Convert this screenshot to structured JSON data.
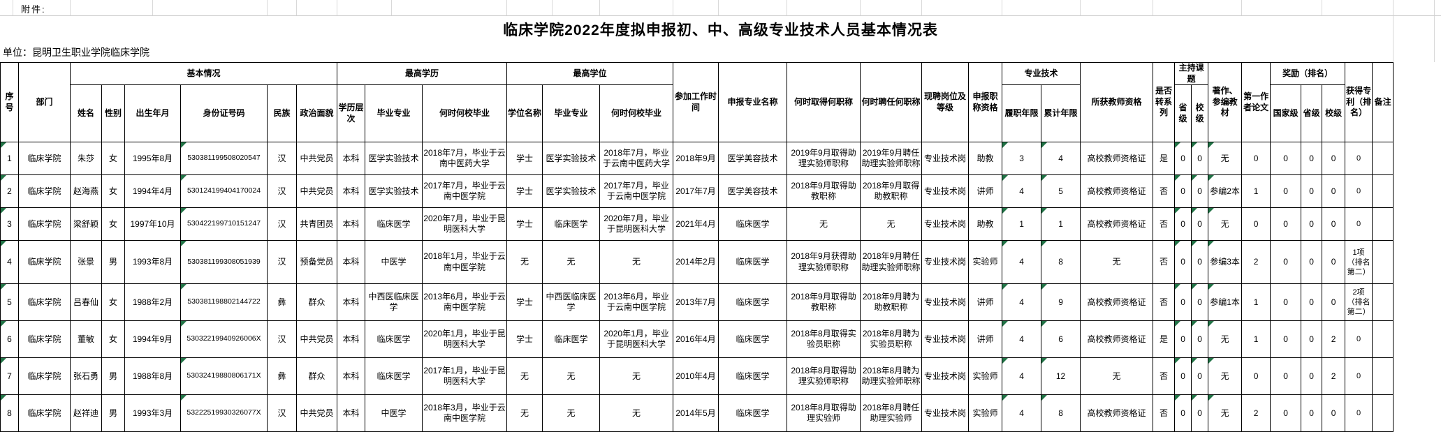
{
  "attachment_label": "附件:",
  "title": "临床学院2022年度拟申报初、中、高级专业技术人员基本情况表",
  "unit_label": "单位：昆明卫生职业学院临床学院",
  "icons": {
    "filter_arrow": "▼",
    "cell_flag": "corner-triangle"
  },
  "colors": {
    "filter_green": "#0fa04a",
    "flag_green": "#217346",
    "grid_black": "#000000",
    "gridline_gray": "#d9d9d9"
  },
  "table": {
    "group_headers": {
      "xuhao": "序号",
      "bumen": "部门",
      "jiben": "基本情况",
      "zuigao_xueli": "最高学历",
      "zuigao_xuewei": "最高学位",
      "canjia": "参加工作时间",
      "shenbao_zhuanye": "申报专业名称",
      "qude": "何时取得何职称",
      "pinren": "何时聘任何职称",
      "xianpin": "现聘岗位及等级",
      "shenbao_zige": "申报职称资格",
      "zhuanye_jishu": "专业技术",
      "suohuo": "所获教师资格",
      "shifou": "是否转系列",
      "zhuchi": "主持课题",
      "zhuzuo": "著作、参编教材",
      "diyi": "第一作者论文",
      "jiangli": "奖励（排名）",
      "zhuanli": "获得专利（排名）",
      "beizhu": "备注"
    },
    "sub_headers": {
      "xingming": "姓名",
      "xingbie": "性别",
      "chusheng": "出生年月",
      "shenfenzheng": "身份证号码",
      "minzu": "民族",
      "zhengzhi": "政治面貌",
      "xueli_cengci": "学历层次",
      "biye_zhuanye1": "毕业专业",
      "heshi_biye1": "何时何校毕业",
      "xuewei_mingcheng": "学位名称",
      "biye_zhuanye2": "毕业专业",
      "heshi_biye2": "何时何校毕业",
      "luzhi": "履职年限",
      "leiji": "累计年限",
      "shengji1": "省级",
      "xiaoji1": "校级",
      "guojiaji": "国家级",
      "shengji2": "省级",
      "xiaoji2": "校级"
    },
    "rows": [
      {
        "cells": [
          "1",
          "临床学院",
          "朱莎",
          "女",
          "1995年8月",
          "530381199508020547",
          "汉",
          "中共党员",
          "本科",
          "医学实验技术",
          "2018年7月，毕业于云南中医药大学",
          "学士",
          "医学实验技术",
          "2018年7月，毕业于云南中医药大学",
          "2018年9月",
          "医学美容技术",
          "2019年9月取得助理实验师职称",
          "2019年9月聘任助理实验师职称",
          "专业技术岗",
          "助教",
          "3",
          "4",
          "高校教师资格证",
          "是",
          "0",
          "0",
          "无",
          "0",
          "0",
          "0",
          "0",
          "0",
          ""
        ]
      },
      {
        "cells": [
          "2",
          "临床学院",
          "赵海燕",
          "女",
          "1994年4月",
          "530124199404170024",
          "汉",
          "中共党员",
          "本科",
          "医学实验技术",
          "2017年7月，毕业于云南中医学院",
          "学士",
          "医学实验技术",
          "2017年7月，毕业于云南中医学院",
          "2017年7月",
          "医学美容技术",
          "2018年9月取得助教职称",
          "2018年9月取得助教职称",
          "专业技术岗",
          "讲师",
          "4",
          "5",
          "高校教师资格证",
          "否",
          "0",
          "0",
          "参编2本",
          "1",
          "0",
          "0",
          "0",
          "0",
          ""
        ]
      },
      {
        "cells": [
          "3",
          "临床学院",
          "梁舒颖",
          "女",
          "1997年10月",
          "530422199710151247",
          "汉",
          "共青团员",
          "本科",
          "临床医学",
          "2020年7月，毕业于昆明医科大学",
          "学士",
          "临床医学",
          "2020年7月，毕业于昆明医科大学",
          "2021年4月",
          "临床医学",
          "无",
          "无",
          "专业技术岗",
          "助教",
          "1",
          "1",
          "高校教师资格证",
          "否",
          "0",
          "0",
          "无",
          "0",
          "0",
          "0",
          "0",
          "0",
          ""
        ]
      },
      {
        "cells": [
          "4",
          "临床学院",
          "张景",
          "男",
          "1993年8月",
          "530381199308051939",
          "汉",
          "预备党员",
          "本科",
          "中医学",
          "2018年1月，毕业于云南中医学院",
          "无",
          "无",
          "无",
          "2014年2月",
          "临床医学",
          "2018年9月获得助理实验师职称",
          "2018年9月聘任助理实验师职称",
          "专业技术岗",
          "实验师",
          "4",
          "8",
          "无",
          "否",
          "0",
          "0",
          "参编3本",
          "2",
          "0",
          "0",
          "0",
          "1项（排名第二）",
          ""
        ]
      },
      {
        "cells": [
          "5",
          "临床学院",
          "吕春仙",
          "女",
          "1988年2月",
          "530381198802144722",
          "彝",
          "群众",
          "本科",
          "中西医临床医学",
          "2013年6月，毕业于云南中医学院",
          "学士",
          "中西医临床医学",
          "2013年6月，毕业于云南中医学院",
          "2013年7月",
          "临床医学",
          "2018年9月取得助教职称",
          "2018年9月聘为助教职称",
          "专业技术岗",
          "讲师",
          "4",
          "9",
          "高校教师资格证",
          "否",
          "0",
          "0",
          "参编1本",
          "1",
          "0",
          "0",
          "0",
          "2项（排名第二）",
          ""
        ]
      },
      {
        "cells": [
          "6",
          "临床学院",
          "董敏",
          "女",
          "1994年9月",
          "53032219940926006X",
          "汉",
          "中共党员",
          "本科",
          "临床医学",
          "2020年1月，毕业于昆明医科大学",
          "学士",
          "临床医学",
          "2020年1月，毕业于昆明医科大学",
          "2016年4月",
          "临床医学",
          "2018年8月取得实验员职称",
          "2018年8月聘为实验员职称",
          "专业技术岗",
          "讲师",
          "4",
          "6",
          "高校教师资格证",
          "是",
          "0",
          "0",
          "无",
          "1",
          "0",
          "0",
          "2",
          "0",
          ""
        ]
      },
      {
        "cells": [
          "7",
          "临床学院",
          "张石勇",
          "男",
          "1988年8月",
          "53032419880806171X",
          "彝",
          "群众",
          "本科",
          "临床医学",
          "2017年1月，毕业于昆明医科大学",
          "无",
          "无",
          "无",
          "2010年4月",
          "临床医学",
          "2018年8月取得助理实验师职称",
          "2018年8月聘为助理实验师职称",
          "专业技术岗",
          "实验师",
          "4",
          "12",
          "无",
          "否",
          "0",
          "0",
          "无",
          "0",
          "0",
          "0",
          "2",
          "0",
          ""
        ]
      },
      {
        "cells": [
          "8",
          "临床学院",
          "赵祥迪",
          "男",
          "1993年3月",
          "53222519930326077X",
          "汉",
          "中共党员",
          "本科",
          "中医学",
          "2018年3月，毕业于云南中医学院",
          "无",
          "无",
          "无",
          "2014年5月",
          "临床医学",
          "2018年8月取得助理实验师",
          "2018年8月聘任助理实验师",
          "专业技术岗",
          "实验师",
          "4",
          "8",
          "高校教师资格证",
          "否",
          "0",
          "0",
          "无",
          "2",
          "0",
          "0",
          "0",
          "0",
          ""
        ]
      }
    ]
  }
}
